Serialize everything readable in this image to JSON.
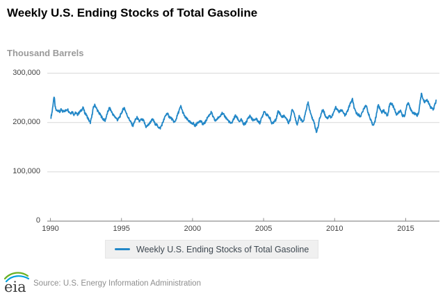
{
  "header": {
    "title": "Weekly U.S. Ending Stocks of Total Gasoline",
    "units_label": "Thousand Barrels"
  },
  "legend": {
    "label": "Weekly U.S. Ending Stocks of Total Gasoline"
  },
  "footer": {
    "logo_text": "eia",
    "source": "Source: U.S. Energy Information Administration"
  },
  "colors": {
    "line": "#2287c7",
    "gridline": "#d7d7d7",
    "axis": "#8f8f8f",
    "tick_text": "#404040",
    "legend_bg": "#f0f0f0",
    "logo_green": "#6ab023",
    "logo_blue": "#00a0dc"
  },
  "chart_data": {
    "type": "line",
    "title": "Weekly U.S. Ending Stocks of Total Gasoline",
    "xlabel": "",
    "ylabel": "Thousand Barrels",
    "xlim": [
      1989.8,
      2017.4
    ],
    "ylim": [
      0,
      300000
    ],
    "grid": true,
    "legend_position": "bottom",
    "weekly_noise": 2500,
    "x_ticks": [
      {
        "value": 1990,
        "label": "1990"
      },
      {
        "value": 1995,
        "label": "1995"
      },
      {
        "value": 2000,
        "label": "2000"
      },
      {
        "value": 2005,
        "label": "2005"
      },
      {
        "value": 2010,
        "label": "2010"
      },
      {
        "value": 2015,
        "label": "2015"
      }
    ],
    "y_ticks": [
      {
        "value": 0,
        "label": "0"
      },
      {
        "value": 100000,
        "label": "100,000"
      },
      {
        "value": 200000,
        "label": "200,000"
      },
      {
        "value": 300000,
        "label": "300,000"
      }
    ],
    "series": [
      {
        "name": "Weekly U.S. Ending Stocks of Total Gasoline",
        "color": "#2287c7",
        "points": [
          [
            1990.04,
            211000
          ],
          [
            1990.12,
            222000
          ],
          [
            1990.2,
            240000
          ],
          [
            1990.27,
            253000
          ],
          [
            1990.33,
            232000
          ],
          [
            1990.42,
            224000
          ],
          [
            1990.55,
            225000
          ],
          [
            1990.65,
            221000
          ],
          [
            1990.75,
            226000
          ],
          [
            1990.85,
            222000
          ],
          [
            1990.95,
            224000
          ],
          [
            1991.1,
            224000
          ],
          [
            1991.2,
            228000
          ],
          [
            1991.3,
            222000
          ],
          [
            1991.42,
            219000
          ],
          [
            1991.55,
            222000
          ],
          [
            1991.65,
            216000
          ],
          [
            1991.78,
            220000
          ],
          [
            1991.9,
            216000
          ],
          [
            1992.05,
            221000
          ],
          [
            1992.15,
            224000
          ],
          [
            1992.3,
            230000
          ],
          [
            1992.42,
            220000
          ],
          [
            1992.55,
            214000
          ],
          [
            1992.67,
            207000
          ],
          [
            1992.8,
            199000
          ],
          [
            1992.9,
            210000
          ],
          [
            1993.0,
            228000
          ],
          [
            1993.13,
            236000
          ],
          [
            1993.25,
            228000
          ],
          [
            1993.4,
            220000
          ],
          [
            1993.55,
            214000
          ],
          [
            1993.7,
            207000
          ],
          [
            1993.85,
            204000
          ],
          [
            1994.0,
            218000
          ],
          [
            1994.15,
            230000
          ],
          [
            1994.3,
            222000
          ],
          [
            1994.45,
            214000
          ],
          [
            1994.6,
            210000
          ],
          [
            1994.72,
            205000
          ],
          [
            1994.85,
            210000
          ],
          [
            1994.95,
            216000
          ],
          [
            1995.1,
            226000
          ],
          [
            1995.2,
            230000
          ],
          [
            1995.35,
            218000
          ],
          [
            1995.5,
            209000
          ],
          [
            1995.65,
            201000
          ],
          [
            1995.8,
            193000
          ],
          [
            1995.95,
            204000
          ],
          [
            1996.1,
            210000
          ],
          [
            1996.25,
            202000
          ],
          [
            1996.4,
            206000
          ],
          [
            1996.55,
            204000
          ],
          [
            1996.73,
            191000
          ],
          [
            1996.85,
            194000
          ],
          [
            1996.97,
            198000
          ],
          [
            1997.1,
            204000
          ],
          [
            1997.22,
            206000
          ],
          [
            1997.35,
            198000
          ],
          [
            1997.48,
            195000
          ],
          [
            1997.6,
            191000
          ],
          [
            1997.72,
            188000
          ],
          [
            1997.85,
            196000
          ],
          [
            1997.95,
            203000
          ],
          [
            1998.1,
            214000
          ],
          [
            1998.22,
            219000
          ],
          [
            1998.35,
            212000
          ],
          [
            1998.5,
            209000
          ],
          [
            1998.62,
            204000
          ],
          [
            1998.75,
            200000
          ],
          [
            1998.88,
            210000
          ],
          [
            1999.05,
            224000
          ],
          [
            1999.18,
            233000
          ],
          [
            1999.3,
            222000
          ],
          [
            1999.45,
            212000
          ],
          [
            1999.6,
            207000
          ],
          [
            1999.75,
            203000
          ],
          [
            1999.9,
            198000
          ],
          [
            2000.05,
            199000
          ],
          [
            2000.15,
            193000
          ],
          [
            2000.3,
            197000
          ],
          [
            2000.45,
            203000
          ],
          [
            2000.6,
            202000
          ],
          [
            2000.75,
            196000
          ],
          [
            2000.9,
            201000
          ],
          [
            2001.05,
            210000
          ],
          [
            2001.2,
            216000
          ],
          [
            2001.32,
            221000
          ],
          [
            2001.45,
            211000
          ],
          [
            2001.6,
            203000
          ],
          [
            2001.75,
            208000
          ],
          [
            2001.9,
            212000
          ],
          [
            2002.05,
            219000
          ],
          [
            2002.18,
            216000
          ],
          [
            2002.32,
            211000
          ],
          [
            2002.45,
            206000
          ],
          [
            2002.6,
            201000
          ],
          [
            2002.72,
            197000
          ],
          [
            2002.87,
            206000
          ],
          [
            2003.02,
            214000
          ],
          [
            2003.15,
            209000
          ],
          [
            2003.3,
            202000
          ],
          [
            2003.45,
            206000
          ],
          [
            2003.58,
            196000
          ],
          [
            2003.72,
            198000
          ],
          [
            2003.88,
            207000
          ],
          [
            2004.05,
            214000
          ],
          [
            2004.18,
            207000
          ],
          [
            2004.32,
            204000
          ],
          [
            2004.47,
            208000
          ],
          [
            2004.6,
            203000
          ],
          [
            2004.73,
            199000
          ],
          [
            2004.88,
            210000
          ],
          [
            2005.05,
            224000
          ],
          [
            2005.18,
            217000
          ],
          [
            2005.32,
            213000
          ],
          [
            2005.45,
            209000
          ],
          [
            2005.58,
            197000
          ],
          [
            2005.72,
            201000
          ],
          [
            2005.87,
            206000
          ],
          [
            2006.03,
            224000
          ],
          [
            2006.17,
            217000
          ],
          [
            2006.3,
            211000
          ],
          [
            2006.45,
            214000
          ],
          [
            2006.6,
            208000
          ],
          [
            2006.75,
            200000
          ],
          [
            2006.88,
            206000
          ],
          [
            2007.0,
            228000
          ],
          [
            2007.12,
            222000
          ],
          [
            2007.25,
            206000
          ],
          [
            2007.37,
            196000
          ],
          [
            2007.5,
            212000
          ],
          [
            2007.63,
            206000
          ],
          [
            2007.77,
            200000
          ],
          [
            2007.9,
            213000
          ],
          [
            2008.05,
            233000
          ],
          [
            2008.13,
            240000
          ],
          [
            2008.27,
            222000
          ],
          [
            2008.4,
            210000
          ],
          [
            2008.53,
            203000
          ],
          [
            2008.65,
            188000
          ],
          [
            2008.72,
            181000
          ],
          [
            2008.82,
            190000
          ],
          [
            2008.93,
            206000
          ],
          [
            2009.1,
            222000
          ],
          [
            2009.2,
            226000
          ],
          [
            2009.35,
            213000
          ],
          [
            2009.5,
            209000
          ],
          [
            2009.63,
            214000
          ],
          [
            2009.76,
            210000
          ],
          [
            2009.9,
            218000
          ],
          [
            2010.08,
            231000
          ],
          [
            2010.2,
            226000
          ],
          [
            2010.33,
            221000
          ],
          [
            2010.48,
            226000
          ],
          [
            2010.62,
            219000
          ],
          [
            2010.75,
            214000
          ],
          [
            2010.9,
            223000
          ],
          [
            2011.08,
            237000
          ],
          [
            2011.25,
            247000
          ],
          [
            2011.4,
            226000
          ],
          [
            2011.55,
            218000
          ],
          [
            2011.68,
            216000
          ],
          [
            2011.8,
            212000
          ],
          [
            2011.92,
            219000
          ],
          [
            2012.08,
            229000
          ],
          [
            2012.2,
            236000
          ],
          [
            2012.35,
            221000
          ],
          [
            2012.5,
            207000
          ],
          [
            2012.68,
            195000
          ],
          [
            2012.82,
            200000
          ],
          [
            2012.93,
            215000
          ],
          [
            2013.05,
            236000
          ],
          [
            2013.18,
            228000
          ],
          [
            2013.32,
            221000
          ],
          [
            2013.46,
            224000
          ],
          [
            2013.6,
            218000
          ],
          [
            2013.73,
            214000
          ],
          [
            2013.88,
            239000
          ],
          [
            2014.05,
            237000
          ],
          [
            2014.2,
            228000
          ],
          [
            2014.36,
            216000
          ],
          [
            2014.5,
            220000
          ],
          [
            2014.65,
            224000
          ],
          [
            2014.78,
            214000
          ],
          [
            2014.92,
            212000
          ],
          [
            2015.08,
            235000
          ],
          [
            2015.22,
            240000
          ],
          [
            2015.35,
            226000
          ],
          [
            2015.5,
            220000
          ],
          [
            2015.65,
            218000
          ],
          [
            2015.8,
            214000
          ],
          [
            2015.92,
            221000
          ],
          [
            2016.1,
            259000
          ],
          [
            2016.22,
            247000
          ],
          [
            2016.35,
            241000
          ],
          [
            2016.5,
            246000
          ],
          [
            2016.62,
            239000
          ],
          [
            2016.75,
            231000
          ],
          [
            2016.88,
            227000
          ],
          [
            2016.95,
            226000
          ],
          [
            2017.05,
            237000
          ],
          [
            2017.15,
            244000
          ]
        ]
      }
    ]
  }
}
